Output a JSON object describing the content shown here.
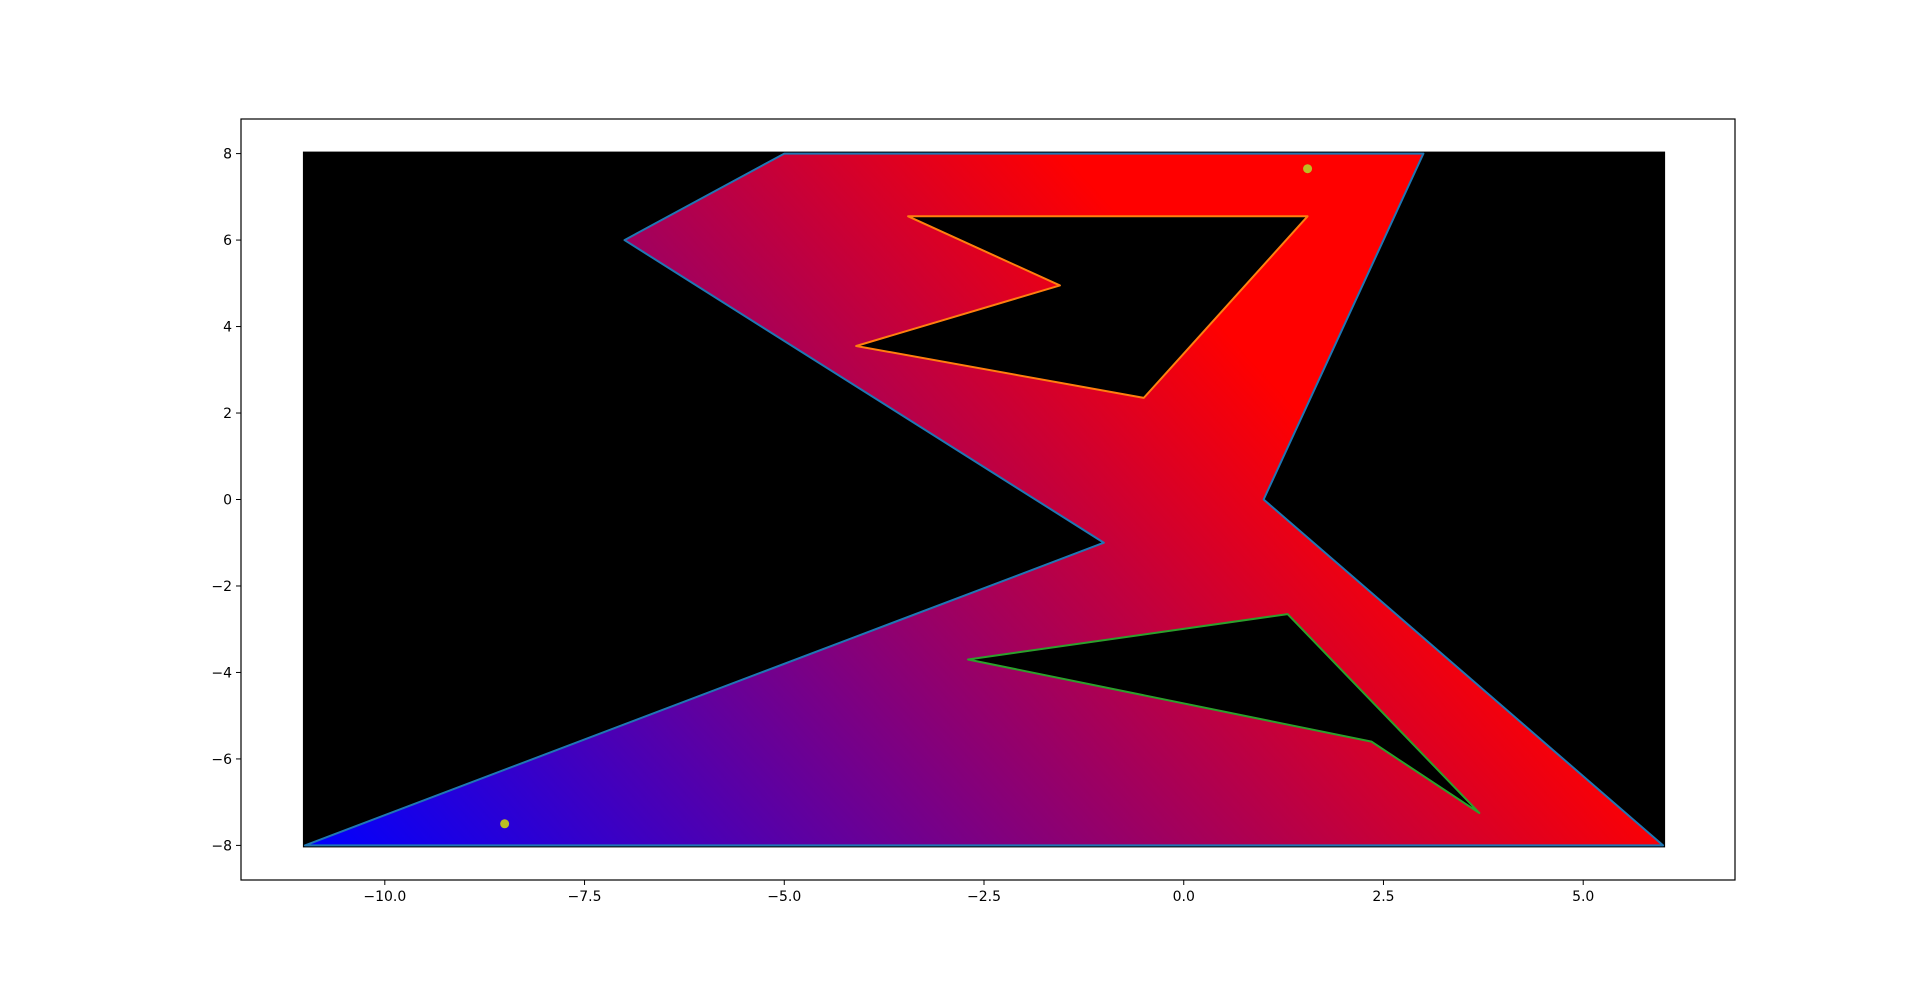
{
  "chart_data": {
    "type": "area",
    "title": "",
    "xlabel": "",
    "ylabel": "",
    "xlim": [
      -11.8,
      6.9
    ],
    "ylim": [
      -8.8,
      8.8
    ],
    "x_ticks": [
      -10.0,
      -7.5,
      -5.0,
      -2.5,
      0.0,
      2.5,
      5.0
    ],
    "x_tick_labels": [
      "−10.0",
      "−7.5",
      "−5.0",
      "−2.5",
      "0.0",
      "2.5",
      "5.0"
    ],
    "y_ticks": [
      8,
      6,
      4,
      2,
      0,
      -2,
      -4,
      -6,
      -8
    ],
    "y_tick_labels": [
      "8",
      "6",
      "4",
      "2",
      "0",
      "−2",
      "−4",
      "−6",
      "−8"
    ],
    "grid": false,
    "background_rect": {
      "x": [
        -11,
        6
      ],
      "y": [
        -8,
        8
      ],
      "color": "#000000"
    },
    "gradient": {
      "from_color": "#0000ff",
      "to_color": "#ff0000",
      "from_point": [
        -11,
        -8
      ],
      "to_point": [
        -1.5,
        8
      ]
    },
    "outer_polygon": {
      "color": "#1f77b4",
      "points": [
        [
          -11,
          -8
        ],
        [
          6,
          -8
        ],
        [
          1,
          0
        ],
        [
          3,
          8
        ],
        [
          -5,
          8
        ],
        [
          -7,
          6
        ],
        [
          -1,
          -1
        ],
        [
          -11,
          -8
        ]
      ]
    },
    "holes": [
      {
        "color": "#ff7f0e",
        "points": [
          [
            -3.45,
            6.55
          ],
          [
            1.55,
            6.55
          ],
          [
            -0.5,
            2.35
          ],
          [
            -4.1,
            3.55
          ],
          [
            -1.55,
            4.95
          ],
          [
            -3.45,
            6.55
          ]
        ]
      },
      {
        "color": "#2ca02c",
        "points": [
          [
            -2.7,
            -3.7
          ],
          [
            1.3,
            -2.65
          ],
          [
            3.7,
            -7.25
          ],
          [
            2.35,
            -5.6
          ],
          [
            -2.7,
            -3.7
          ]
        ]
      }
    ],
    "markers": {
      "color": "#bcbd22",
      "points": [
        [
          -8.5,
          -7.5
        ],
        [
          1.55,
          7.65
        ]
      ]
    }
  }
}
